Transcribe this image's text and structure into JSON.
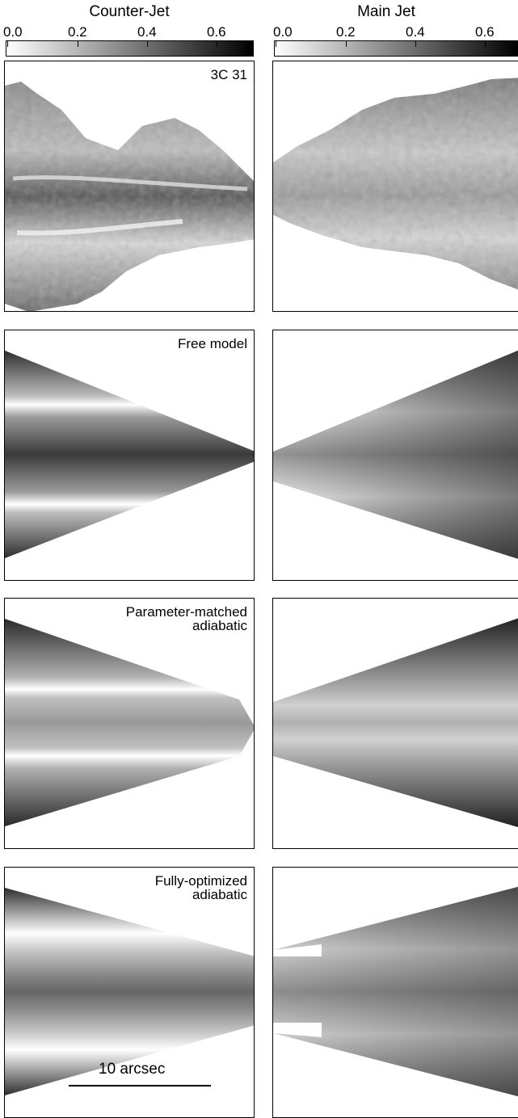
{
  "columns": {
    "left_title": "Counter-Jet",
    "right_title": "Main Jet"
  },
  "colorbar": {
    "ticks": [
      "0.0",
      "0.2",
      "0.4",
      "0.6"
    ],
    "range": [
      0.0,
      0.7
    ],
    "colormap": "white-to-black"
  },
  "rows": [
    {
      "label_lines": [
        "3C 31"
      ],
      "kind": "observed"
    },
    {
      "label_lines": [
        "Free model"
      ],
      "kind": "model"
    },
    {
      "label_lines": [
        "Parameter-matched",
        "adiabatic"
      ],
      "kind": "model"
    },
    {
      "label_lines": [
        "Fully-optimized",
        "adiabatic"
      ],
      "kind": "model"
    }
  ],
  "scalebar": {
    "label": "10 arcsec"
  }
}
